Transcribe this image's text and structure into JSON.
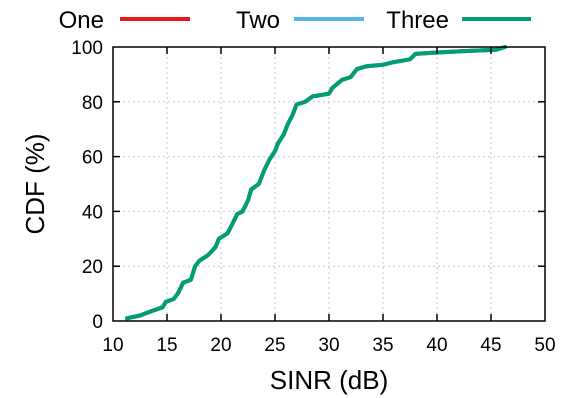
{
  "chart_data": {
    "type": "line",
    "title": "",
    "xlabel": "SINR (dB)",
    "ylabel": "CDF (%)",
    "xlim": [
      10,
      50
    ],
    "ylim": [
      0,
      100
    ],
    "xticks": [
      10,
      15,
      20,
      25,
      30,
      35,
      40,
      45,
      50
    ],
    "yticks": [
      0,
      20,
      40,
      60,
      80,
      100
    ],
    "grid": true,
    "legend": "top",
    "series": [
      {
        "name": "One",
        "color": "#e41a1c",
        "x": [
          11.3,
          12.5,
          13.5,
          14.6,
          14.9,
          15.6,
          16.0,
          16.5,
          17.2,
          17.6,
          18.0,
          18.8,
          19.5,
          19.8,
          20.6,
          21.0,
          21.5,
          22.0,
          22.5,
          22.8,
          23.5,
          24.0,
          24.5,
          25.0,
          25.3,
          25.8,
          26.2,
          26.6,
          27.0,
          27.8,
          28.5,
          29.0,
          30.0,
          30.3,
          31.2,
          32.0,
          32.6,
          33.5,
          35.0,
          36.0,
          37.5,
          38.0,
          40.0,
          42.5,
          45.5,
          46.3
        ],
        "y": [
          1,
          2,
          3.5,
          5,
          7,
          8,
          10,
          14,
          15,
          20,
          22,
          24,
          27,
          30,
          32,
          35,
          39,
          40,
          44,
          48,
          50,
          55,
          59,
          62,
          65,
          68,
          72,
          75,
          79,
          80,
          82,
          82.3,
          83,
          85,
          88,
          89,
          92,
          93,
          93.5,
          94.5,
          95.5,
          97.5,
          98,
          98.5,
          99,
          100
        ]
      },
      {
        "name": "Two",
        "color": "#56b4e9",
        "x": [
          11.3,
          12.5,
          13.5,
          14.6,
          14.9,
          15.6,
          16.0,
          16.5,
          17.2,
          17.6,
          18.0,
          18.8,
          19.5,
          19.8,
          20.6,
          21.0,
          21.5,
          22.0,
          22.5,
          22.8,
          23.5,
          24.0,
          24.5,
          25.0,
          25.3,
          25.8,
          26.2,
          26.6,
          27.0,
          27.8,
          28.5,
          29.0,
          30.0,
          30.3,
          31.2,
          32.0,
          32.6,
          33.5,
          35.0,
          36.0,
          37.5,
          38.0,
          40.0,
          42.5,
          45.5,
          46.3
        ],
        "y": [
          1,
          2,
          3.5,
          5,
          7,
          8,
          10,
          14,
          15,
          20,
          22,
          24,
          27,
          30,
          32,
          35,
          39,
          40,
          44,
          48,
          50,
          55,
          59,
          62,
          65,
          68,
          72,
          75,
          79,
          80,
          82,
          82.3,
          83,
          85,
          88,
          89,
          92,
          93,
          93.5,
          94.5,
          95.5,
          97.5,
          98,
          98.5,
          99,
          100
        ]
      },
      {
        "name": "Three",
        "color": "#009e73",
        "x": [
          11.3,
          12.5,
          13.5,
          14.6,
          14.9,
          15.6,
          16.0,
          16.5,
          17.2,
          17.6,
          18.0,
          18.8,
          19.5,
          19.8,
          20.6,
          21.0,
          21.5,
          22.0,
          22.5,
          22.8,
          23.5,
          24.0,
          24.5,
          25.0,
          25.3,
          25.8,
          26.2,
          26.6,
          27.0,
          27.8,
          28.5,
          29.0,
          30.0,
          30.3,
          31.2,
          32.0,
          32.6,
          33.5,
          35.0,
          36.0,
          37.5,
          38.0,
          40.0,
          42.5,
          45.5,
          46.3
        ],
        "y": [
          1,
          2,
          3.5,
          5,
          7,
          8,
          10,
          14,
          15,
          20,
          22,
          24,
          27,
          30,
          32,
          35,
          39,
          40,
          44,
          48,
          50,
          55,
          59,
          62,
          65,
          68,
          72,
          75,
          79,
          80,
          82,
          82.3,
          83,
          85,
          88,
          89,
          92,
          93,
          93.5,
          94.5,
          95.5,
          97.5,
          98,
          98.5,
          99,
          100
        ]
      }
    ]
  }
}
